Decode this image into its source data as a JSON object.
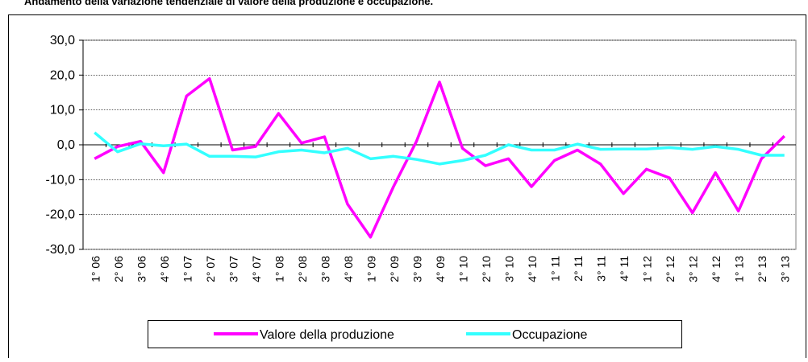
{
  "chart_data": {
    "type": "line",
    "title": "Andamento della variazione tendenziale di valore della produzione e occupazione.",
    "categories": [
      "1° 06",
      "2° 06",
      "3° 06",
      "4° 06",
      "1° 07",
      "2° 07",
      "3° 07",
      "4° 07",
      "1° 08",
      "2° 08",
      "3° 08",
      "4° 08",
      "1° 09",
      "2° 09",
      "3° 09",
      "4° 09",
      "1° 10",
      "2° 10",
      "3° 10",
      "4° 10",
      "1° 11",
      "2° 11",
      "3° 11",
      "4° 11",
      "1° 12",
      "2° 12",
      "3° 12",
      "4° 12",
      "1° 13",
      "2° 13",
      "3° 13"
    ],
    "series": [
      {
        "name": "Valore della produzione",
        "color": "#ff00ff",
        "values": [
          -4,
          -0.5,
          1,
          -8,
          14,
          19,
          -1.5,
          -0.5,
          9,
          0.5,
          2.3,
          -17,
          -26.5,
          -12,
          1,
          18,
          -1,
          -6,
          -4,
          -12,
          -4.5,
          -1.5,
          -5.5,
          -14,
          -7,
          -9.5,
          -19.5,
          -8,
          -19,
          -4,
          2.5
        ]
      },
      {
        "name": "Occupazione",
        "color": "#33ffff",
        "values": [
          3.5,
          -2,
          0.3,
          -0.3,
          0.2,
          -3.3,
          -3.3,
          -3.5,
          -2,
          -1.5,
          -2.3,
          -1,
          -4,
          -3.3,
          -4.2,
          -5.5,
          -4.5,
          -3,
          0,
          -1.5,
          -1.5,
          0.2,
          -1.3,
          -1.2,
          -1.2,
          -0.8,
          -1.3,
          -0.5,
          -1.3,
          -3,
          -3
        ]
      }
    ],
    "ylim": [
      -30,
      30
    ],
    "yticks": [
      {
        "value": -30,
        "label": "-30,0"
      },
      {
        "value": -20,
        "label": "-20,0"
      },
      {
        "value": -10,
        "label": "-10,0"
      },
      {
        "value": 0,
        "label": "0,0"
      },
      {
        "value": 10,
        "label": "10,0"
      },
      {
        "value": 20,
        "label": "20,0"
      },
      {
        "value": 30,
        "label": "30,0"
      }
    ],
    "grid": true,
    "legend": "bottom"
  }
}
